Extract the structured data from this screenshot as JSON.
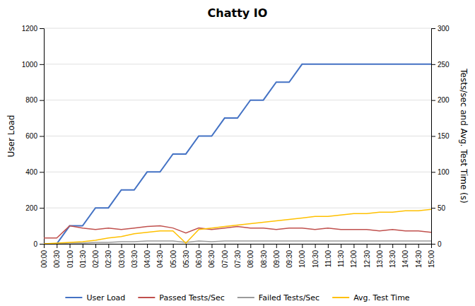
{
  "chart_data": {
    "type": "line",
    "title": "Chatty IO",
    "ylabel": "User Load",
    "y2label": "Tests/sec and Avg. Test Time (s)",
    "categories": [
      "00:00",
      "00:30",
      "01:00",
      "01:30",
      "02:00",
      "02:30",
      "03:00",
      "03:30",
      "04:00",
      "04:30",
      "05:00",
      "05:30",
      "06:00",
      "06:30",
      "07:00",
      "07:30",
      "08:00",
      "08:30",
      "09:00",
      "09:30",
      "10:00",
      "10:30",
      "11:00",
      "11:30",
      "12:00",
      "12:30",
      "13:00",
      "13:30",
      "14:00",
      "14:30",
      "15:00"
    ],
    "series": [
      {
        "name": "User Load",
        "color": "#4472C4",
        "values": [
          0,
          0,
          100,
          100,
          200,
          200,
          300,
          300,
          400,
          400,
          500,
          500,
          600,
          600,
          700,
          700,
          800,
          800,
          900,
          900,
          1000,
          1000,
          1000,
          1000,
          1000,
          1000,
          1000,
          1000,
          1000,
          1000,
          1000
        ]
      },
      {
        "name": "Passed Tests/Sec",
        "color": "#C0504D",
        "axis": "y2",
        "values": [
          8,
          8,
          25,
          22,
          20,
          22,
          20,
          22,
          24,
          25,
          22,
          15,
          22,
          20,
          22,
          24,
          22,
          22,
          20,
          22,
          22,
          20,
          22,
          20,
          20,
          20,
          18,
          20,
          18,
          18,
          16
        ]
      },
      {
        "name": "Failed Tests/Sec",
        "color": "#9B9B9B",
        "axis": "y2",
        "values": [
          0,
          0,
          1,
          1,
          2,
          2,
          3,
          3,
          4,
          4,
          4,
          2,
          4,
          3,
          4,
          4,
          4,
          4,
          4,
          4,
          4,
          4,
          4,
          4,
          4,
          4,
          4,
          4,
          4,
          4,
          4
        ]
      },
      {
        "name": "Avg. Test Time",
        "color": "#FFC000",
        "axis": "y2",
        "values": [
          0,
          1,
          2,
          3,
          5,
          8,
          10,
          14,
          16,
          18,
          18,
          1,
          20,
          22,
          24,
          26,
          28,
          30,
          32,
          34,
          36,
          38,
          38,
          40,
          42,
          42,
          44,
          44,
          46,
          46,
          48
        ]
      }
    ],
    "ylim": [
      0,
      1200
    ],
    "yticks": [
      0,
      200,
      400,
      600,
      800,
      1000,
      1200
    ],
    "y2lim": [
      0,
      300
    ],
    "y2ticks": [
      0,
      50,
      100,
      150,
      200,
      250,
      300
    ],
    "grid": true,
    "legend": "bottom"
  }
}
